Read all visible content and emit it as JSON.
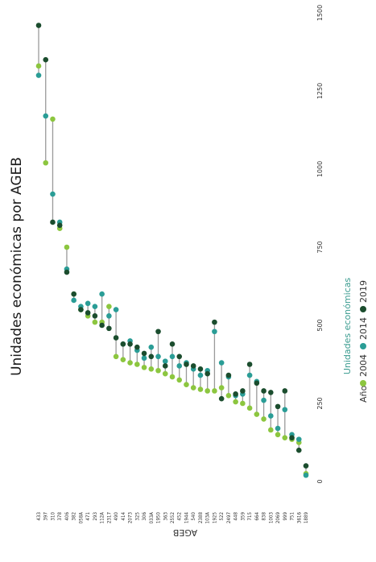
{
  "colors": {
    "y2004": "#8cc63f",
    "y2014": "#2a9d96",
    "y2019": "#1b4d2e",
    "segment": "#9a9a9a"
  },
  "chart_data": {
    "type": "dumbbell",
    "orientation": "vertical-rotated",
    "title": "Unidades económicas por AGEB",
    "xlabel": "AGEB",
    "ylabel": "Unidades económicas",
    "ylim": [
      0,
      1500
    ],
    "yticks": [
      "0",
      "250",
      "500",
      "750",
      "1000",
      "1250",
      "1500"
    ],
    "grid": false,
    "legend": {
      "title": "Año",
      "position": "bottom",
      "entries": [
        "2004",
        "2014",
        "2019"
      ]
    },
    "categories": [
      "433",
      "397",
      "310",
      "378",
      "406",
      "382",
      "058A",
      "471",
      "293",
      "112A",
      "2317",
      "490",
      "414",
      "2073",
      "325",
      "306",
      "033A",
      "1950",
      "363",
      "2552",
      "452",
      "1944",
      "540",
      "2388",
      "103A",
      "1925",
      "522",
      "2497",
      "448",
      "359",
      "715",
      "664",
      "838",
      "1003",
      "2069",
      "999",
      "751",
      "3616",
      "1889"
    ],
    "series": [
      {
        "name": "2004",
        "values": [
          1330,
          1020,
          1160,
          810,
          750,
          600,
          550,
          530,
          510,
          510,
          560,
          400,
          390,
          380,
          375,
          365,
          360,
          355,
          345,
          335,
          325,
          310,
          300,
          295,
          290,
          290,
          300,
          275,
          255,
          250,
          235,
          215,
          200,
          165,
          150,
          140,
          135,
          125,
          25
        ]
      },
      {
        "name": "2014",
        "values": [
          1300,
          1170,
          920,
          830,
          680,
          580,
          560,
          570,
          560,
          600,
          530,
          550,
          440,
          450,
          420,
          395,
          430,
          400,
          385,
          400,
          370,
          380,
          360,
          340,
          355,
          480,
          380,
          335,
          275,
          280,
          340,
          320,
          260,
          210,
          170,
          230,
          150,
          135,
          20
        ]
      },
      {
        "name": "2019",
        "values": [
          1460,
          1350,
          830,
          820,
          670,
          600,
          550,
          540,
          530,
          500,
          490,
          460,
          440,
          440,
          430,
          410,
          400,
          480,
          370,
          440,
          400,
          375,
          370,
          360,
          345,
          510,
          265,
          340,
          280,
          290,
          375,
          315,
          290,
          285,
          240,
          290,
          140,
          100,
          50
        ]
      }
    ]
  }
}
